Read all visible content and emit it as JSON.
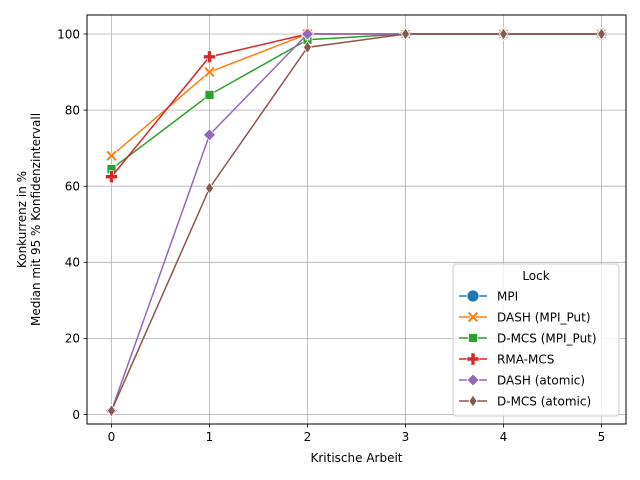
{
  "chart_data": {
    "type": "line",
    "xlabel": "Kritische Arbeit",
    "ylabel_lines": [
      "Konkurrenz in %",
      "Median mit 95 % Konfidenzintervall"
    ],
    "x": [
      0,
      1,
      2,
      3,
      4,
      5
    ],
    "xlim": [
      -0.25,
      5.25
    ],
    "ylim": [
      -2.5,
      105
    ],
    "xticks": [
      0,
      1,
      2,
      3,
      4,
      5
    ],
    "yticks": [
      0,
      20,
      40,
      60,
      80,
      100
    ],
    "grid": true,
    "legend": {
      "title": "Lock",
      "placement": "bottom-right"
    },
    "series": [
      {
        "name": "MPI",
        "color": "#1f77b4",
        "marker": "circle",
        "values": [
          null,
          null,
          null,
          null,
          null,
          null
        ]
      },
      {
        "name": "DASH (MPI_Put)",
        "color": "#ff7f0e",
        "marker": "x",
        "values": [
          68,
          90,
          100,
          100,
          100,
          100
        ]
      },
      {
        "name": "D-MCS (MPI_Put)",
        "color": "#2ca02c",
        "marker": "square",
        "values": [
          64.5,
          84,
          98.5,
          100,
          100,
          100
        ]
      },
      {
        "name": "RMA-MCS",
        "color": "#d62728",
        "marker": "plus",
        "values": [
          62.5,
          94,
          100,
          100,
          100,
          100
        ]
      },
      {
        "name": "DASH (atomic)",
        "color": "#9467bd",
        "marker": "diamond",
        "values": [
          1,
          73.5,
          100,
          100,
          100,
          100
        ]
      },
      {
        "name": "D-MCS (atomic)",
        "color": "#8c564b",
        "marker": "thin-diamond",
        "values": [
          1,
          59.5,
          96.5,
          100,
          100,
          100
        ]
      }
    ]
  }
}
